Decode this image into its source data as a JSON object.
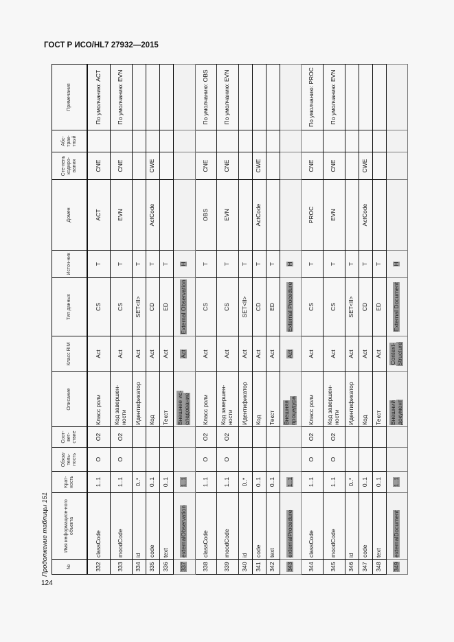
{
  "header": {
    "title": "ГОСТ Р ИСО/HL7 27932—2015",
    "page_number": "124",
    "caption": "Продолжение таблицы 151"
  },
  "columns": [
    "№",
    "Имя информацион-ного объекта",
    "Крат-ность",
    "Обяза-тель-ность",
    "Соот-вет-ствие",
    "Описание",
    "Класс RIM",
    "Тип данных",
    "Источ-ник",
    "Домен",
    "Сте-пень кодиро-вания",
    "Абс-трак-тный",
    "Примечания"
  ],
  "rows": [
    [
      "332",
      "classCode",
      "1..1",
      "O",
      "O2",
      "Класс роли",
      "Act",
      "CS",
      "T",
      "ACT",
      "CNE",
      "",
      "По умолчанию: ACT"
    ],
    [
      "333",
      "moodCode",
      "1..1",
      "O",
      "O2",
      "Код завершен-ности",
      "Act",
      "CS",
      "T",
      "EVN",
      "CNE",
      "",
      "По умолчанию: EVN"
    ],
    [
      "334",
      "id",
      "0..*",
      "",
      "",
      "Идентификатор",
      "Act",
      "SET<II>",
      "T",
      "",
      "",
      "",
      ""
    ],
    [
      "335",
      "code",
      "0..1",
      "",
      "",
      "Код",
      "Act",
      "CD",
      "T",
      "ActCode",
      "CWE",
      "",
      ""
    ],
    [
      "336",
      "text",
      "0..1",
      "",
      "",
      "Текст",
      "Act",
      "ED",
      "T",
      "",
      "",
      "",
      ""
    ],
    [
      "337",
      "externalObservation",
      "1..1",
      "",
      "",
      "Внешнее ис-следование",
      "Act",
      "External Observation",
      "H",
      "",
      "",
      "",
      ""
    ],
    [
      "338",
      "classCode",
      "1..1",
      "O",
      "O2",
      "Класс роли",
      "Act",
      "CS",
      "T",
      "OBS",
      "CNE",
      "",
      "По умолчанию: OBS"
    ],
    [
      "339",
      "moodCode",
      "1..1",
      "O",
      "O2",
      "Код завершен-ности",
      "Act",
      "CS",
      "T",
      "EVN",
      "CNE",
      "",
      "По умолчанию: EVN"
    ],
    [
      "340",
      "id",
      "0..*",
      "",
      "",
      "Идентификатор",
      "Act",
      "SET<II>",
      "T",
      "",
      "",
      "",
      ""
    ],
    [
      "341",
      "code",
      "0..1",
      "",
      "",
      "Код",
      "Act",
      "CD",
      "T",
      "ActCode",
      "CWE",
      "",
      ""
    ],
    [
      "342",
      "text",
      "0..1",
      "",
      "",
      "Текст",
      "Act",
      "ED",
      "T",
      "",
      "",
      "",
      ""
    ],
    [
      "343",
      "externalProcedure",
      "1..1",
      "",
      "",
      "Внешняя процедура",
      "Act",
      "External Procedure",
      "H",
      "",
      "",
      "",
      ""
    ],
    [
      "344",
      "classCode",
      "1..1",
      "O",
      "O2",
      "Класс роли",
      "Act",
      "CS",
      "T",
      "PROC",
      "CNE",
      "",
      "По умолчанию: PROC"
    ],
    [
      "345",
      "moodCode",
      "1..1",
      "O",
      "O2",
      "Код завершен-ности",
      "Act",
      "CS",
      "T",
      "EVN",
      "CNE",
      "",
      "По умолчанию: EVN"
    ],
    [
      "346",
      "id",
      "0..*",
      "",
      "",
      "Идентификатор",
      "Act",
      "SET<II>",
      "T",
      "",
      "",
      "",
      ""
    ],
    [
      "347",
      "code",
      "0..1",
      "",
      "",
      "Код",
      "Act",
      "CD",
      "T",
      "ActCode",
      "CWE",
      "",
      ""
    ],
    [
      "348",
      "text",
      "0..1",
      "",
      "",
      "Текст",
      "Act",
      "ED",
      "T",
      "",
      "",
      "",
      ""
    ],
    [
      "349",
      "externalDocument",
      "1..1",
      "",
      "",
      "Внешний документ",
      "Context-Structure",
      "External Document",
      "H",
      "",
      "",
      "",
      ""
    ]
  ],
  "highlighted_rows": [
    "337",
    "343",
    "349"
  ]
}
